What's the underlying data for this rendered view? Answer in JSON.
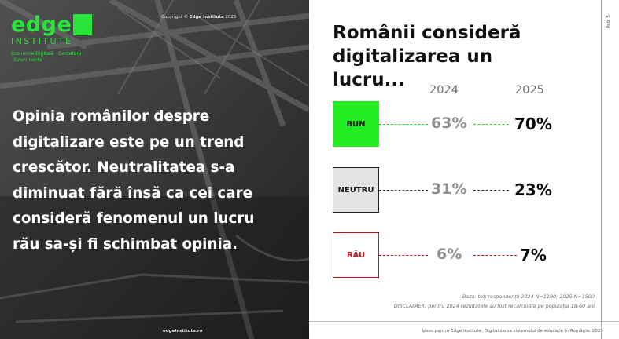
{
  "left": {
    "logo": {
      "edge": "edge",
      "institute": "INSTITUTE",
      "sub": "Economie Digitală · Cercetare · Evenimente"
    },
    "copyright_prefix": "Copyright © ",
    "copyright_brand": "Edge Institute",
    "copyright_year": " 2025",
    "headline": "Opinia românilor despre digitalizare este pe un trend crescător. Neutralitatea s-a diminuat fără însă ca cei care consideră fenomenul un lucru rău sa-și fi schimbat opinia.",
    "url": "edgeinstitute.ro"
  },
  "right": {
    "title": "Românii consideră digitalizarea un lucru...",
    "years": [
      "2024",
      "2025"
    ],
    "rows": [
      {
        "label": "BUN",
        "value_2024": "63%",
        "value_2025": "70%",
        "fill": "#22ee22",
        "border": "#22ee22",
        "text_color": "#1a1a1a",
        "dash_color": "#22dd22"
      },
      {
        "label": "NEUTRU",
        "value_2024": "31%",
        "value_2025": "23%",
        "fill": "#e4e4e4",
        "border": "#222222",
        "text_color": "#1a1a1a",
        "dash_color": "#333333"
      },
      {
        "label": "RĂU",
        "value_2024": "6%",
        "value_2025": "7%",
        "fill": "#ffffff",
        "border": "#c4161c",
        "text_color": "#c4161c",
        "dash_color": "#c4161c"
      }
    ],
    "note_base": "Baza: toți respondenții 2024 N=1190; 2025 N=1500",
    "note_disclaimer": "DISCLAIMER: pentru 2024 rezultatele au fost recalculate pe populația 18-60 ani",
    "footer": "Ipsos pentru Edge Institute, Digitalizarea sistemului de educație în România, 2025",
    "page": "Pag. 5"
  },
  "colors": {
    "brand_green": "#27e33a",
    "bad_red": "#c4161c"
  }
}
